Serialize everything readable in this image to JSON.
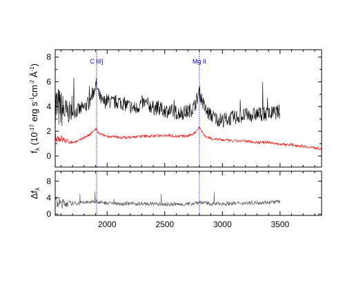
{
  "chart_data": [
    {
      "type": "line",
      "panel": "main",
      "xlim": [
        1550,
        3860
      ],
      "ylim": [
        -0.9,
        8.6
      ],
      "x_ticks": [
        2000,
        2500,
        3000,
        3500
      ],
      "y_ticks": [
        0,
        2,
        4,
        6,
        8
      ],
      "ylabel": {
        "f": "f",
        "sub": "λ",
        "open": " (10",
        "exp1": "-17",
        "units": " erg s",
        "exp2": "-1",
        "units2": "cm",
        "exp3": "-2",
        "units3": " Å",
        "exp4": "-1",
        "close": ")"
      },
      "series": [
        {
          "color": "#000000",
          "x_range": [
            1550,
            3500
          ],
          "x": [
            1550,
            1600,
            1650,
            1700,
            1750,
            1800,
            1850,
            1880,
            1905,
            1930,
            1960,
            2000,
            2050,
            2100,
            2150,
            2200,
            2250,
            2300,
            2350,
            2400,
            2450,
            2500,
            2550,
            2600,
            2650,
            2700,
            2750,
            2780,
            2800,
            2830,
            2860,
            2900,
            2950,
            3000,
            3050,
            3100,
            3150,
            3200,
            3250,
            3300,
            3350,
            3400,
            3450,
            3500
          ],
          "y": [
            4.0,
            3.8,
            3.5,
            3.6,
            3.7,
            3.9,
            4.4,
            5.2,
            5.8,
            4.9,
            4.3,
            4.5,
            4.3,
            4.4,
            4.2,
            4.0,
            3.8,
            4.3,
            4.2,
            3.9,
            3.8,
            3.7,
            3.6,
            3.5,
            3.5,
            3.6,
            3.9,
            4.6,
            5.2,
            4.3,
            3.6,
            3.3,
            3.0,
            2.9,
            3.0,
            3.1,
            3.2,
            3.3,
            3.3,
            3.4,
            3.4,
            3.4,
            3.5,
            3.6
          ],
          "noise": 0.6
        },
        {
          "color": "#ff0000",
          "x_range": [
            1550,
            3860
          ],
          "x": [
            1550,
            1600,
            1650,
            1700,
            1750,
            1800,
            1850,
            1880,
            1905,
            1930,
            1960,
            2000,
            2100,
            2200,
            2300,
            2400,
            2500,
            2600,
            2700,
            2750,
            2780,
            2800,
            2820,
            2850,
            2900,
            3000,
            3100,
            3200,
            3300,
            3400,
            3500,
            3600,
            3700,
            3800,
            3860
          ],
          "y": [
            1.5,
            1.4,
            1.2,
            1.1,
            1.2,
            1.5,
            1.7,
            2.0,
            2.2,
            1.8,
            1.7,
            1.6,
            1.5,
            1.5,
            1.6,
            1.6,
            1.7,
            1.6,
            1.6,
            1.8,
            2.1,
            2.4,
            2.0,
            1.6,
            1.4,
            1.3,
            1.2,
            1.2,
            1.1,
            1.1,
            0.95,
            0.9,
            0.8,
            0.65,
            0.6
          ],
          "noise": 0.12
        }
      ],
      "annotations": [
        {
          "label": "C III]",
          "x": 1909,
          "color": "#0000ff"
        },
        {
          "label": "Mg II",
          "x": 2800,
          "color": "#0000ff"
        }
      ]
    },
    {
      "type": "line",
      "panel": "residual",
      "xlim": [
        1550,
        3860
      ],
      "ylim": [
        -0.3,
        10.4
      ],
      "x_ticks": [
        2000,
        2500,
        3000,
        3500
      ],
      "y_ticks": [
        0,
        4,
        8
      ],
      "ylabel": {
        "delta": "Δf",
        "sub": "λ"
      },
      "series": [
        {
          "color": "#555555",
          "x_range": [
            1550,
            3500
          ],
          "x": [
            1550,
            1700,
            1850,
            1905,
            1950,
            2100,
            2300,
            2500,
            2700,
            2800,
            2900,
            3100,
            3300,
            3500
          ],
          "y": [
            2.7,
            2.6,
            2.9,
            3.2,
            2.8,
            2.6,
            2.5,
            2.4,
            2.4,
            2.9,
            2.5,
            2.6,
            2.8,
            3.0
          ],
          "noise": 0.5
        }
      ]
    }
  ]
}
